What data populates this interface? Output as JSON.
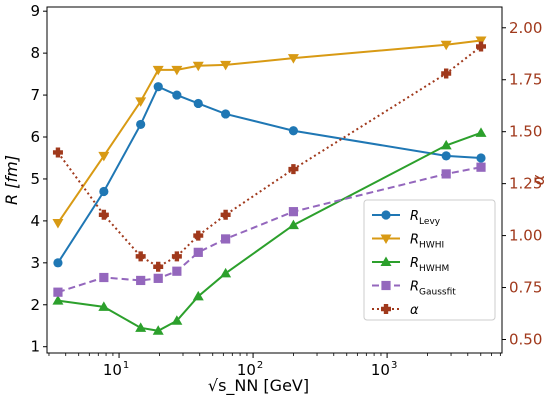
{
  "chart_data": {
    "type": "line",
    "xlabel": "√s_NN [GeV]",
    "xscale": "log",
    "xlim": [
      2.9,
      7200
    ],
    "x_ticks": [
      10,
      100,
      1000
    ],
    "x_tick_labels": [
      "10",
      "10",
      "10"
    ],
    "x_tick_exponents": [
      "1",
      "2",
      "3"
    ],
    "ylabel_left": "R [fm]",
    "ylim_left": [
      0.85,
      9.1
    ],
    "y_ticks_left": [
      1,
      2,
      3,
      4,
      5,
      6,
      7,
      8,
      9
    ],
    "ylabel_right": "α",
    "ylim_right": [
      0.435,
      2.1
    ],
    "y_ticks_right": [
      0.5,
      0.75,
      1.0,
      1.25,
      1.5,
      1.75,
      2.0
    ],
    "y_tick_labels_right": [
      "0.50",
      "0.75",
      "1.00",
      "1.25",
      "1.50",
      "1.75",
      "2.00"
    ],
    "grid": false,
    "legend_position": "lower-right",
    "series": [
      {
        "name": "R",
        "sub": "Levy",
        "axis": "left",
        "color": "#1f77b4",
        "marker": "circle",
        "linestyle": "solid",
        "x": [
          3.5,
          7.7,
          14.5,
          19.6,
          27,
          39,
          62.4,
          200,
          2760,
          5020
        ],
        "values": [
          3.0,
          4.7,
          6.3,
          7.2,
          7.0,
          6.8,
          6.55,
          6.15,
          5.55,
          5.5
        ]
      },
      {
        "name": "R",
        "sub": "HWHI",
        "axis": "left",
        "color": "#d89a14",
        "marker": "triangle-down",
        "linestyle": "solid",
        "x": [
          3.5,
          7.7,
          14.5,
          19.6,
          27,
          39,
          62.4,
          200,
          2760,
          5020
        ],
        "values": [
          3.95,
          5.55,
          6.85,
          7.6,
          7.6,
          7.7,
          7.72,
          7.88,
          8.2,
          8.3
        ]
      },
      {
        "name": "R",
        "sub": "HWHM",
        "axis": "left",
        "color": "#2ca02c",
        "marker": "triangle-up",
        "linestyle": "solid",
        "x": [
          3.5,
          7.7,
          14.5,
          19.6,
          27,
          39,
          62.4,
          200,
          2760,
          5020
        ],
        "values": [
          2.1,
          1.95,
          1.45,
          1.38,
          1.62,
          2.2,
          2.75,
          3.9,
          5.8,
          6.1
        ]
      },
      {
        "name": "R",
        "sub": "Gaussfit",
        "axis": "left",
        "color": "#9467bd",
        "marker": "square",
        "linestyle": "dashed",
        "x": [
          3.5,
          7.7,
          14.5,
          19.6,
          27,
          39,
          62.4,
          200,
          2760,
          5020
        ],
        "values": [
          2.3,
          2.65,
          2.58,
          2.63,
          2.8,
          3.25,
          3.57,
          4.22,
          5.12,
          5.28
        ]
      },
      {
        "name": "α",
        "sub": "",
        "axis": "right",
        "color": "#a0391c",
        "marker": "plus",
        "linestyle": "dotted",
        "x": [
          3.5,
          7.7,
          14.5,
          19.6,
          27,
          39,
          62.4,
          200,
          2760,
          5020
        ],
        "values": [
          1.4,
          1.1,
          0.9,
          0.85,
          0.9,
          1.0,
          1.1,
          1.32,
          1.78,
          1.91
        ]
      }
    ]
  }
}
